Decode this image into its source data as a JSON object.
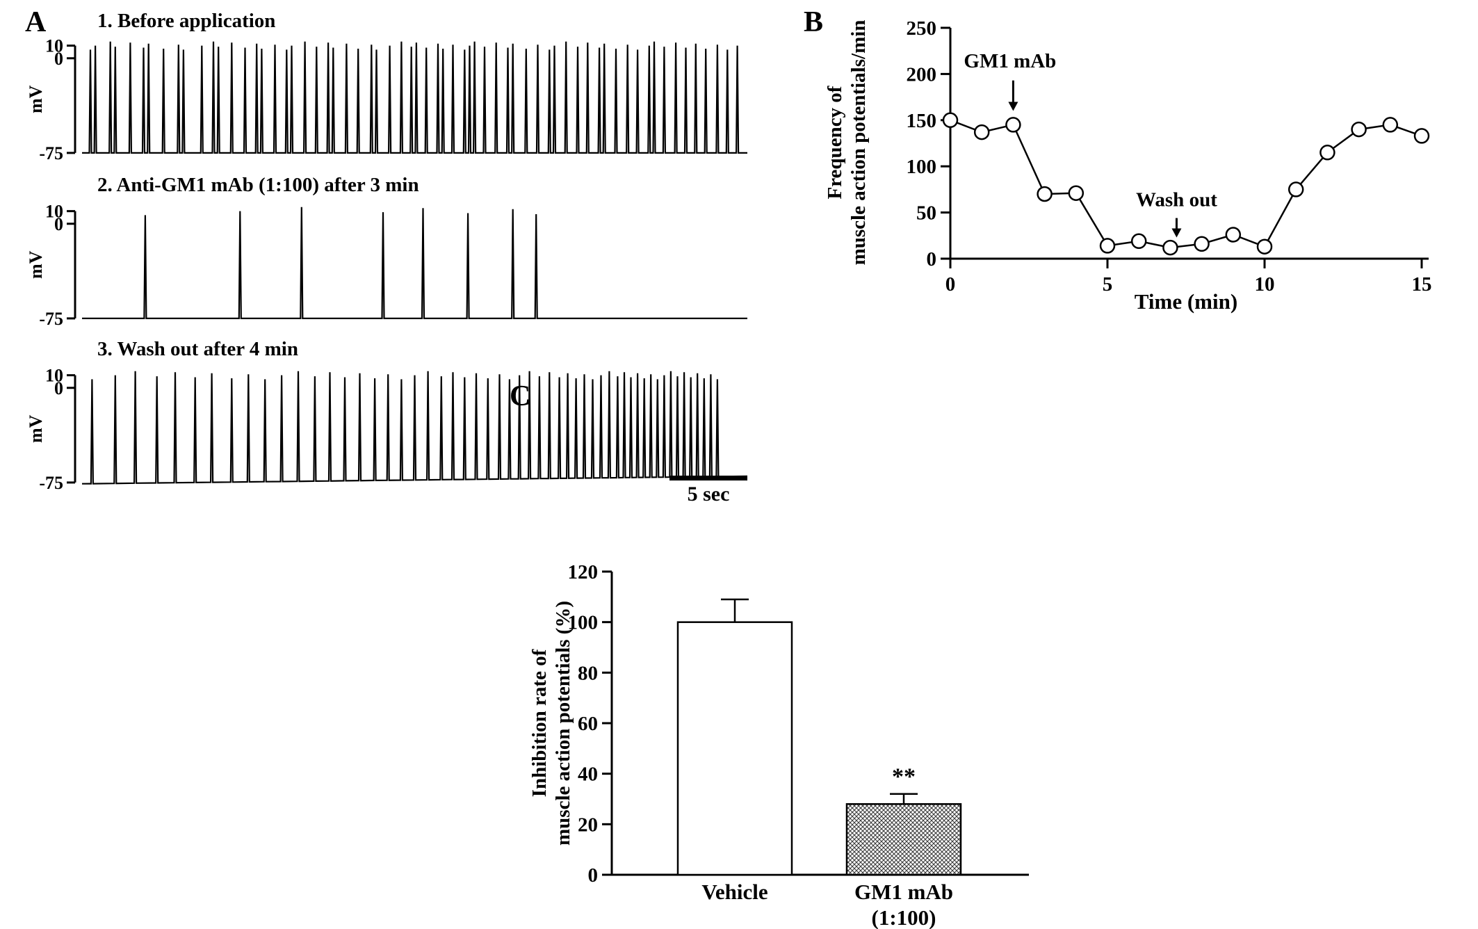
{
  "chart_data": [
    {
      "panel": "A",
      "type": "line",
      "description": "Intracellular recordings of muscle action potentials",
      "ylabel": "mV",
      "yticks": [
        10,
        0,
        -75
      ],
      "spike_peak_mv": 10,
      "duration_sec": 40,
      "scalebar_label": "5 sec",
      "scalebar_sec": 5,
      "traces": [
        {
          "title": "1. Before application",
          "baseline_start_mv": -75,
          "baseline_end_mv": -75,
          "spike_times_sec": [
            0.5,
            0.8,
            1.7,
            2.0,
            2.9,
            3.7,
            4.0,
            4.9,
            5.8,
            6.1,
            7.2,
            7.9,
            8.2,
            9.0,
            9.8,
            10.5,
            10.8,
            11.6,
            12.3,
            12.6,
            13.4,
            14.1,
            14.8,
            15.1,
            15.9,
            16.6,
            17.4,
            17.7,
            18.5,
            19.2,
            19.8,
            20.1,
            20.7,
            21.4,
            21.7,
            22.3,
            23.0,
            23.3,
            23.6,
            24.2,
            24.9,
            25.6,
            25.9,
            26.7,
            27.4,
            28.1,
            28.4,
            29.1,
            29.8,
            30.4,
            31.1,
            31.4,
            32.1,
            32.8,
            33.4,
            34.1,
            34.4,
            35.0,
            35.7,
            36.3,
            36.9,
            37.5,
            38.2,
            38.8,
            39.4
          ]
        },
        {
          "title": "2. Anti-GM1 mAb (1:100) after 3 min",
          "baseline_start_mv": -75,
          "baseline_end_mv": -75,
          "spike_times_sec": [
            3.8,
            9.5,
            13.2,
            18.1,
            20.5,
            23.2,
            25.9,
            27.3
          ]
        },
        {
          "title": "3. Wash out after 4 min",
          "baseline_start_mv": -76,
          "baseline_end_mv": -70,
          "spike_times_sec": [
            0.6,
            2.0,
            3.2,
            4.5,
            5.6,
            6.8,
            7.8,
            9.0,
            10.0,
            11.0,
            12.0,
            13.0,
            14.0,
            14.9,
            15.8,
            16.7,
            17.6,
            18.4,
            19.2,
            20.0,
            20.8,
            21.6,
            22.3,
            23.0,
            23.7,
            24.4,
            25.1,
            25.7,
            26.3,
            26.9,
            27.5,
            28.1,
            28.7,
            29.2,
            29.7,
            30.2,
            30.7,
            31.2,
            31.7,
            32.2,
            32.6,
            33.0,
            33.4,
            33.8,
            34.2,
            34.6,
            35.0,
            35.4,
            35.8,
            36.2,
            36.6,
            37.0,
            37.4,
            37.8,
            38.2
          ]
        }
      ]
    },
    {
      "panel": "B",
      "type": "line",
      "marker": "open-circle",
      "xlabel": "Time (min)",
      "ylabel_lines": [
        "Frequency of",
        "muscle action potentials/min"
      ],
      "x": [
        0,
        1,
        2,
        3,
        4,
        5,
        6,
        7,
        8,
        9,
        10,
        11,
        12,
        13,
        14,
        15
      ],
      "values": [
        150,
        137,
        145,
        70,
        71,
        14,
        19,
        12,
        16,
        26,
        13,
        75,
        115,
        140,
        145,
        133
      ],
      "xlim": [
        0,
        15
      ],
      "ylim": [
        0,
        250
      ],
      "yticks": [
        0,
        50,
        100,
        150,
        200,
        250
      ],
      "xticks": [
        0,
        5,
        10,
        15
      ],
      "annotations": [
        {
          "text": "GM1 mAb",
          "text_x": 1.9,
          "text_y": 207,
          "arrow_x": 2.0,
          "arrow_from_y": 193,
          "arrow_to_y": 160
        },
        {
          "text": "Wash out",
          "text_x": 7.2,
          "text_y": 57,
          "arrow_x": 7.2,
          "arrow_from_y": 44,
          "arrow_to_y": 23
        }
      ]
    },
    {
      "panel": "C",
      "type": "bar",
      "categories": [
        [
          "Vehicle"
        ],
        [
          "GM1 mAb",
          "(1:100)"
        ]
      ],
      "values": [
        100,
        28
      ],
      "errors": [
        9,
        4
      ],
      "significance": [
        "",
        "**"
      ],
      "ylabel_lines": [
        "Inhibition rate of",
        "muscle action potentials (%)"
      ],
      "ylim": [
        0,
        120
      ],
      "yticks": [
        0,
        20,
        40,
        60,
        80,
        100,
        120
      ],
      "bar_fills": [
        "white",
        "crosshatch"
      ]
    }
  ]
}
